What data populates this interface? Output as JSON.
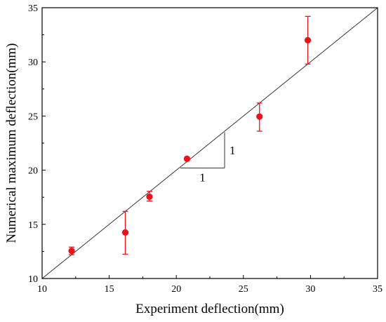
{
  "chart_data": {
    "type": "scatter",
    "xlabel": "Experiment deflection(mm)",
    "ylabel": "Numerical maximum deflection(mm)",
    "xlim": [
      10,
      35
    ],
    "ylim": [
      10,
      35
    ],
    "xticks": [
      10,
      15,
      20,
      25,
      30,
      35
    ],
    "yticks": [
      10,
      15,
      20,
      25,
      30,
      35
    ],
    "grid": false,
    "reference_line": {
      "from": [
        10,
        10
      ],
      "to": [
        35,
        35
      ]
    },
    "slope_triangle": {
      "x0": 20.3,
      "x1": 23.6,
      "y0": 20.2,
      "y1": 23.5,
      "run_label": "1",
      "rise_label": "1"
    },
    "points_color": "#e8141b",
    "points": [
      {
        "x": 12.2,
        "y": 12.55,
        "err_low": 12.2,
        "err_high": 12.9
      },
      {
        "x": 16.2,
        "y": 14.25,
        "err_low": 12.25,
        "err_high": 16.2
      },
      {
        "x": 18.0,
        "y": 17.55,
        "err_low": 17.15,
        "err_high": 18.05
      },
      {
        "x": 20.8,
        "y": 21.05,
        "err_low": 20.9,
        "err_high": 21.2
      },
      {
        "x": 26.2,
        "y": 24.95,
        "err_low": 23.6,
        "err_high": 26.2
      },
      {
        "x": 29.8,
        "y": 32.0,
        "err_low": 29.8,
        "err_high": 34.2
      }
    ]
  }
}
